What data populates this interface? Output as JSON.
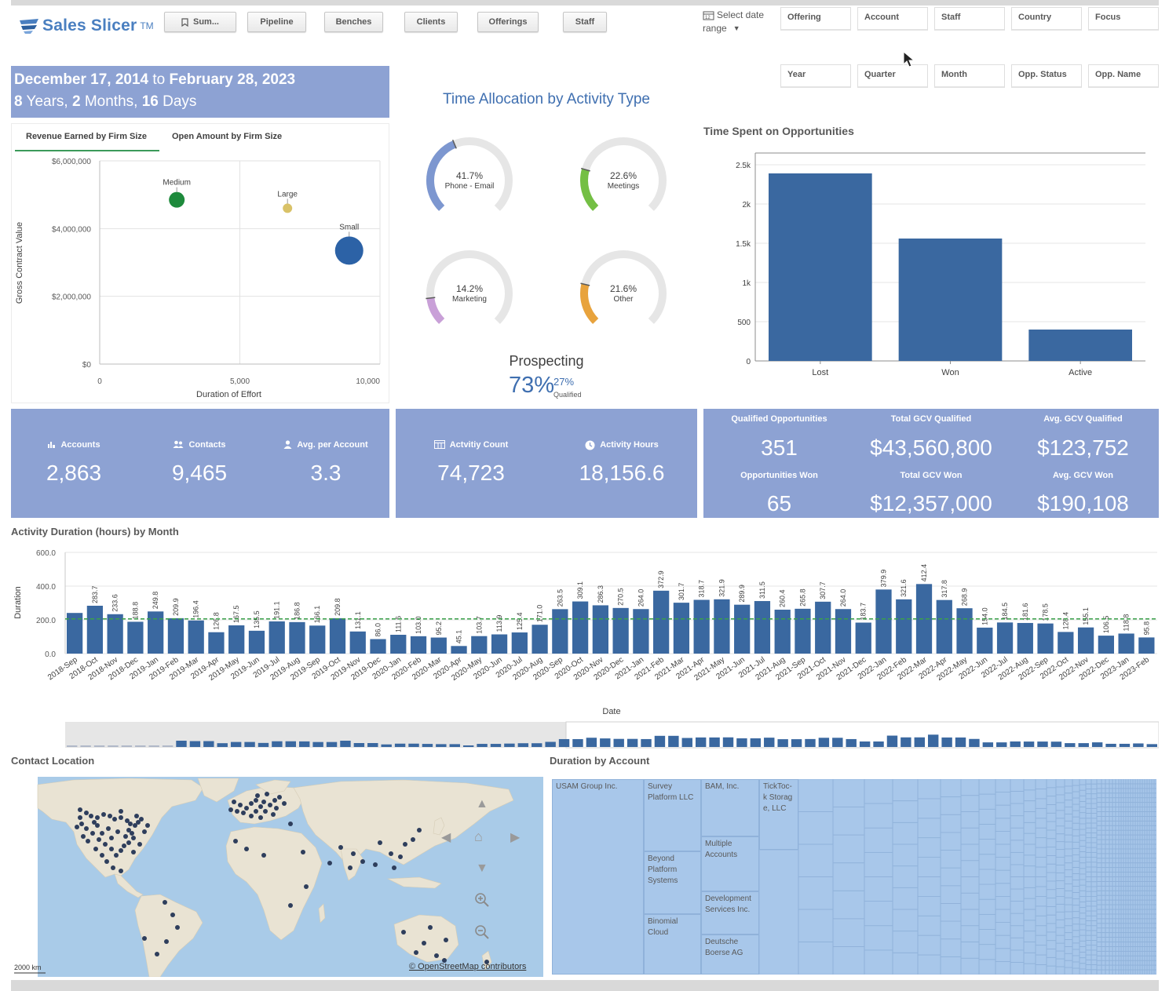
{
  "app": {
    "name": "Sales Slicer",
    "tm": "TM"
  },
  "nav": {
    "summary": "Sum...",
    "pipeline": "Pipeline",
    "benches": "Benches",
    "clients": "Clients",
    "offerings": "Offerings",
    "staff": "Staff"
  },
  "date_select": {
    "line1": "Select date",
    "line2": "range"
  },
  "filters": {
    "row1": [
      "Offering",
      "Account",
      "Staff",
      "Country",
      "Focus"
    ],
    "row2": [
      "Year",
      "Quarter",
      "Month",
      "Opp. Status",
      "Opp. Name"
    ]
  },
  "date_range": {
    "start": "December 17, 2014",
    "to": "to",
    "end": "February 28, 2023",
    "years": "8",
    "years_label": "Years,",
    "months": "2",
    "months_label": "Months,",
    "days": "16",
    "days_label": "Days"
  },
  "scatter_tabs": {
    "active": "Revenue Earned by Firm Size",
    "other": "Open Amount by Firm Size"
  },
  "gauges": {
    "title": "Time Allocation by Activity Type",
    "items": [
      {
        "pct": "41.7%",
        "label": "Phone - Email",
        "value": 41.7,
        "color": "#7d97d0"
      },
      {
        "pct": "22.6%",
        "label": "Meetings",
        "value": 22.6,
        "color": "#74bf44"
      },
      {
        "pct": "14.2%",
        "label": "Marketing",
        "value": 14.2,
        "color": "#c9a0d8"
      },
      {
        "pct": "21.6%",
        "label": "Other",
        "value": 21.6,
        "color": "#e8a33d"
      }
    ],
    "prospecting_label": "Prospecting",
    "prospecting_pct": "73%",
    "qualified_pct": "27%",
    "qualified_label": "Qualified"
  },
  "kpis": {
    "accounts_label": "Accounts",
    "accounts": "2,863",
    "contacts_label": "Contacts",
    "contacts": "9,465",
    "avg_label": "Avg. per Account",
    "avg": "3.3",
    "activity_count_label": "Actvitiy Count",
    "activity_count": "74,723",
    "activity_hours_label": "Activity Hours",
    "activity_hours": "18,156.6",
    "qual_opp_label": "Qualified Opportunities",
    "qual_opp": "351",
    "total_gcv_qual_label": "Total GCV Qualified",
    "total_gcv_qual": "$43,560,800",
    "avg_gcv_qual_label": "Avg. GCV Qualified",
    "avg_gcv_qual": "$123,752",
    "opp_won_label": "Opportunities Won",
    "opp_won": "65",
    "total_gcv_won_label": "Total GCV Won",
    "total_gcv_won": "$12,357,000",
    "avg_gcv_won_label": "Avg. GCV Won",
    "avg_gcv_won": "$190,108"
  },
  "sections": {
    "monthly_title": "Activity Duration (hours) by Month",
    "contact_location": "Contact Location",
    "duration_by_account": "Duration by Account",
    "map_scale": "2000 km",
    "map_attrib": "© OpenStreetMap contributors"
  },
  "treemap": {
    "cells": [
      "USAM Group Inc.",
      "Survey Platform LLC",
      "BAM, Inc.",
      "TickToc-k Storage, LLC",
      "Beyond Platform Systems",
      "Multiple Accounts",
      "Development Services Inc.",
      "Binomial Cloud",
      "Deutsche Boerse AG"
    ]
  },
  "colors": {
    "accent": "#8da2d3",
    "bar": "#3a68a0",
    "green_dot": "#1e8a3c",
    "yellow_dot": "#d9c268",
    "blue_dot": "#2c62a6"
  },
  "chart_data": [
    {
      "type": "scatter",
      "title": "",
      "xlabel": "Duration of Effort",
      "ylabel": "Gross Contract Value",
      "xlim": [
        0,
        10000
      ],
      "ylim": [
        0,
        6000000
      ],
      "x_ticks": [
        "0",
        "5,000",
        "10,000"
      ],
      "y_ticks": [
        "$0",
        "$2,000,000",
        "$4,000,000",
        "$6,000,000"
      ],
      "points": [
        {
          "name": "Medium",
          "x": 2750,
          "y": 4850000,
          "color": "#1e8a3c",
          "size": "medium"
        },
        {
          "name": "Large",
          "x": 6700,
          "y": 4600000,
          "color": "#d9c268",
          "size": "small"
        },
        {
          "name": "Small",
          "x": 8900,
          "y": 3350000,
          "color": "#2c62a6",
          "size": "large"
        }
      ],
      "grid": true
    },
    {
      "type": "bar",
      "title": "Time Spent on Opportunities",
      "categories": [
        "Lost",
        "Won",
        "Active"
      ],
      "values": [
        2390,
        1560,
        400
      ],
      "ylim": [
        0,
        2500
      ],
      "y_ticks": [
        "0",
        "500",
        "1k",
        "1.5k",
        "2k",
        "2.5k"
      ],
      "grid": true
    },
    {
      "type": "bar",
      "title": "Activity Duration (hours) by Month",
      "xlabel": "Date",
      "ylabel": "Duration",
      "ylim": [
        0,
        600
      ],
      "y_ticks": [
        "0.0",
        "200.0",
        "400.0",
        "600.0"
      ],
      "reference_line": 206,
      "categories": [
        "2018-Sep",
        "2018-Oct",
        "2018-Nov",
        "2018-Dec",
        "2019-Jan",
        "2019-Feb",
        "2019-Mar",
        "2019-Apr",
        "2019-May",
        "2019-Jun",
        "2019-Jul",
        "2019-Aug",
        "2019-Sep",
        "2019-Oct",
        "2019-Nov",
        "2019-Dec",
        "2020-Jan",
        "2020-Feb",
        "2020-Mar",
        "2020-Apr",
        "2020-May",
        "2020-Jun",
        "2020-Jul",
        "2020-Aug",
        "2020-Sep",
        "2020-Oct",
        "2020-Nov",
        "2020-Dec",
        "2021-Jan",
        "2021-Feb",
        "2021-Mar",
        "2021-Apr",
        "2021-May",
        "2021-Jun",
        "2021-Jul",
        "2021-Aug",
        "2021-Sep",
        "2021-Oct",
        "2021-Nov",
        "2021-Dec",
        "2022-Jan",
        "2022-Feb",
        "2022-Mar",
        "2022-Apr",
        "2022-May",
        "2022-Jun",
        "2022-Jul",
        "2022-Aug",
        "2022-Sep",
        "2022-Oct",
        "2022-Nov",
        "2022-Dec",
        "2023-Jan",
        "2023-Feb"
      ],
      "values": [
        241,
        283.7,
        233.6,
        188.8,
        249.8,
        209.9,
        196.4,
        126.8,
        167.5,
        135.5,
        191.1,
        186.8,
        166.1,
        209.8,
        131.1,
        86.0,
        111.6,
        103.0,
        95.2,
        45.1,
        103.7,
        113.9,
        125.4,
        171.0,
        263.5,
        309.1,
        286.3,
        270.5,
        264.0,
        372.9,
        301.7,
        318.7,
        321.9,
        289.9,
        311.5,
        260.4,
        265.8,
        307.7,
        264.0,
        183.7,
        379.9,
        321.6,
        412.4,
        317.8,
        268.9,
        154.0,
        184.5,
        181.6,
        178.5,
        128.4,
        155.1,
        106.5,
        118.8,
        95.8
      ],
      "labels": [
        "",
        "283.7",
        "233.6",
        "188.8",
        "249.8",
        "209.9",
        "196.4",
        "126.8",
        "167.5",
        "135.5",
        "191.1",
        "186.8",
        "166.1",
        "209.8",
        "131.1",
        "86.0",
        "111.6",
        "103.0",
        "95.2",
        "45.1",
        "103.7",
        "113.9",
        "125.4",
        "171.0",
        "263.5",
        "309.1",
        "286.3",
        "270.5",
        "264.0",
        "372.9",
        "301.7",
        "318.7",
        "321.9",
        "289.9",
        "311.5",
        "260.4",
        "265.8",
        "307.7",
        "264.0",
        "183.7",
        "379.9",
        "321.6",
        "412.4",
        "317.8",
        "268.9",
        "154.0",
        "184.5",
        "181.6",
        "178.5",
        "128.4",
        "155.1",
        "106.5",
        "118.8",
        "95.8"
      ]
    }
  ]
}
